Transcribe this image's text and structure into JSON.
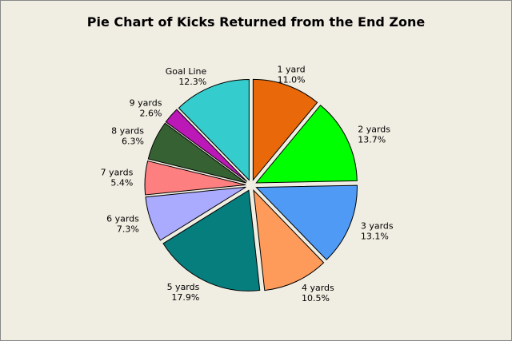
{
  "chart_data": {
    "type": "pie",
    "title": "Pie Chart of Kicks Returned from the End Zone",
    "start_angle_deg": 90,
    "direction": "clockwise",
    "slices": [
      {
        "label": "1 yard",
        "percent_label": "11.0%",
        "value": 11.0,
        "color": "#e8680a"
      },
      {
        "label": "2 yards",
        "percent_label": "13.7%",
        "value": 13.7,
        "color": "#00ff00"
      },
      {
        "label": "3 yards",
        "percent_label": "13.1%",
        "value": 13.1,
        "color": "#4e9af5"
      },
      {
        "label": "4 yards",
        "percent_label": "10.5%",
        "value": 10.5,
        "color": "#fe9b5a"
      },
      {
        "label": "5 yards",
        "percent_label": "17.9%",
        "value": 17.9,
        "color": "#077e7e"
      },
      {
        "label": "6 yards",
        "percent_label": "7.3%",
        "value": 7.3,
        "color": "#aaaaff"
      },
      {
        "label": "7 yards",
        "percent_label": "5.4%",
        "value": 5.4,
        "color": "#fd7f7f"
      },
      {
        "label": "8 yards",
        "percent_label": "6.3%",
        "value": 6.3,
        "color": "#356133"
      },
      {
        "label": "9 yards",
        "percent_label": "2.6%",
        "value": 2.6,
        "color": "#bb18b7"
      },
      {
        "label": "Goal Line",
        "percent_label": "12.3%",
        "value": 12.3,
        "color": "#34cccc"
      }
    ],
    "legend": "none"
  }
}
